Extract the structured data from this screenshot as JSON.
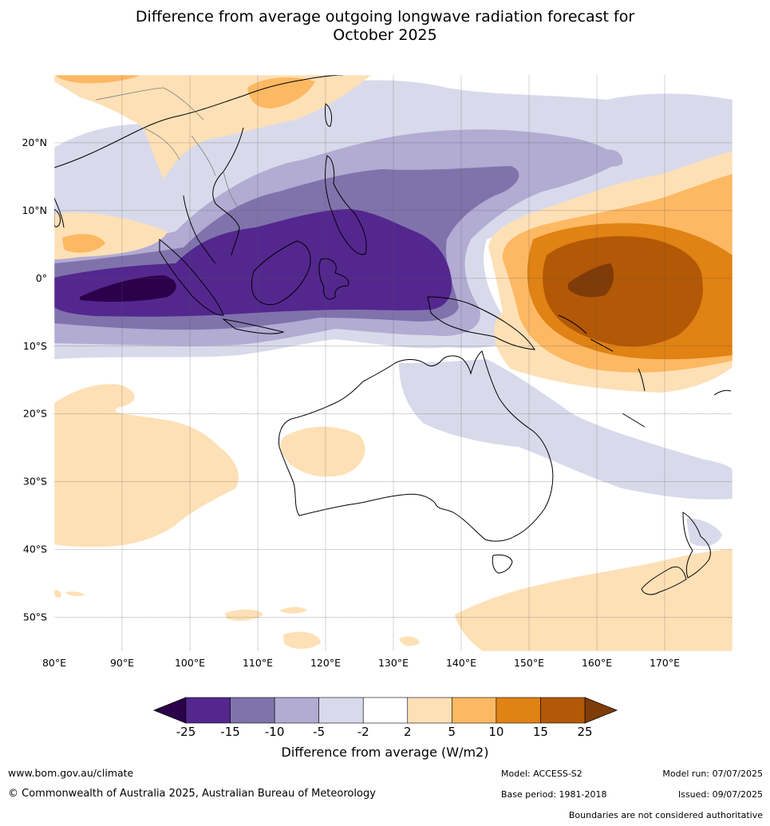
{
  "title_line1": "Difference from average outgoing longwave radiation forecast for",
  "title_line2": "October 2025",
  "map": {
    "lon_range": [
      80,
      180
    ],
    "lat_range": [
      -55,
      30
    ],
    "lon_ticks": [
      80,
      90,
      100,
      110,
      120,
      130,
      140,
      150,
      160,
      170
    ],
    "lon_tick_labels": [
      "80°E",
      "90°E",
      "100°E",
      "110°E",
      "120°E",
      "130°E",
      "140°E",
      "150°E",
      "160°E",
      "170°E"
    ],
    "lat_ticks": [
      20,
      10,
      0,
      -10,
      -20,
      -30,
      -40,
      -50
    ],
    "lat_tick_labels": [
      "20°N",
      "10°N",
      "0°",
      "10°S",
      "20°S",
      "30°S",
      "40°S",
      "50°S"
    ]
  },
  "colorbar": {
    "title": "Difference from average (W/m2)",
    "boundaries": [
      "-25",
      "-15",
      "-10",
      "-5",
      "-2",
      "2",
      "5",
      "10",
      "15",
      "25"
    ],
    "colors": [
      "#54278f",
      "#8073ac",
      "#b2abd2",
      "#d8daeb",
      "#ffffff",
      "#fee0b6",
      "#fdb863",
      "#e08214",
      "#b35806"
    ],
    "low_extend_color": "#2d004b",
    "high_extend_color": "#7f3b08"
  },
  "footer": {
    "website": "www.bom.gov.au/climate",
    "copyright": "© Commonwealth of Australia 2025, Australian Bureau of Meteorology",
    "model": "Model: ACCESS-S2",
    "base_period": "Base period: 1981-2018",
    "model_run": "Model run: 07/07/2025",
    "issued": "Issued: 09/07/2025",
    "disclaimer": "Boundaries are not considered authoritative"
  }
}
